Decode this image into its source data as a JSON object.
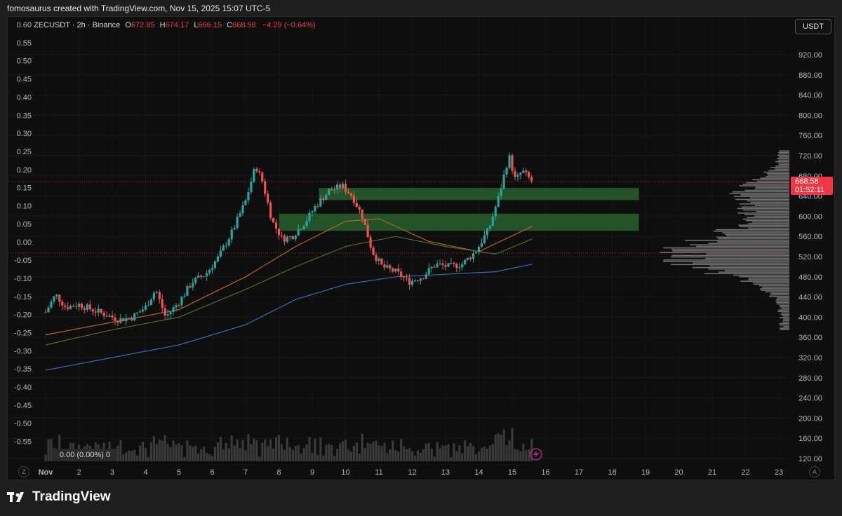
{
  "header": {
    "attribution": "fomosaurus created with TradingView.com, Nov 15, 2025 15:07 UTC-5"
  },
  "legend": {
    "symbol": "ZECUSDT · 2h · Binance",
    "open_label": "O",
    "open": "672.85",
    "high_label": "H",
    "high": "674.17",
    "low_label": "L",
    "low": "666.15",
    "close_label": "C",
    "close": "668.58",
    "change": "−4.29 (−0.64%)"
  },
  "currency_button": "USDT",
  "price_tag": {
    "price": "668.58",
    "countdown": "01:52:11"
  },
  "volume_box": "0.00 (0.00%) 0",
  "axis_buttons": {
    "left": "Z",
    "right": "A"
  },
  "footer": {
    "brand": "TradingView"
  },
  "colors": {
    "up": "#26a69a",
    "down": "#ef5350",
    "zone": "#2e6b33",
    "ma_orange": "#b5651d",
    "ma_green": "#556b2f",
    "ma_blue": "#3d6bb3"
  },
  "chart_data": {
    "type": "candlestick",
    "symbol": "ZECUSDT",
    "interval": "2h",
    "exchange": "Binance",
    "x_tick_labels": [
      "Nov",
      "2",
      "3",
      "4",
      "5",
      "6",
      "7",
      "8",
      "9",
      "10",
      "11",
      "12",
      "13",
      "14",
      "15",
      "16",
      "17",
      "18",
      "19",
      "20",
      "21",
      "22",
      "23"
    ],
    "right_axis_labels": [
      "920.00",
      "880.00",
      "840.00",
      "800.00",
      "760.00",
      "720.00",
      "680.00",
      "640.00",
      "600.00",
      "560.00",
      "520.00",
      "480.00",
      "440.00",
      "400.00",
      "360.00",
      "320.00",
      "280.00",
      "240.00",
      "200.00",
      "160.00",
      "120.00"
    ],
    "left_axis_labels": [
      "0.60",
      "0.55",
      "0.50",
      "0.45",
      "0.40",
      "0.35",
      "0.30",
      "0.25",
      "0.20",
      "0.15",
      "0.10",
      "0.05",
      "0.00",
      "-0.05",
      "-0.10",
      "-0.15",
      "-0.20",
      "-0.25",
      "-0.30",
      "-0.35",
      "-0.40",
      "-0.45",
      "-0.50",
      "-0.55"
    ],
    "right_axis_range": [
      120,
      920
    ],
    "last_price": 668.58,
    "horizontal_lines": [
      668.58,
      527
    ],
    "zones": [
      {
        "day_from": 9.2,
        "day_to": 18.8,
        "price_low": 632,
        "price_high": 656
      },
      {
        "day_from": 8.0,
        "day_to": 18.8,
        "price_low": 571,
        "price_high": 605
      }
    ],
    "price_path": [
      {
        "day": 1.0,
        "price": 410
      },
      {
        "day": 1.3,
        "price": 445
      },
      {
        "day": 1.6,
        "price": 420
      },
      {
        "day": 2.0,
        "price": 425
      },
      {
        "day": 2.4,
        "price": 415
      },
      {
        "day": 2.8,
        "price": 405
      },
      {
        "day": 3.2,
        "price": 395
      },
      {
        "day": 3.6,
        "price": 400
      },
      {
        "day": 4.0,
        "price": 420
      },
      {
        "day": 4.3,
        "price": 455
      },
      {
        "day": 4.6,
        "price": 400
      },
      {
        "day": 5.0,
        "price": 430
      },
      {
        "day": 5.4,
        "price": 470
      },
      {
        "day": 5.8,
        "price": 485
      },
      {
        "day": 6.2,
        "price": 520
      },
      {
        "day": 6.6,
        "price": 570
      },
      {
        "day": 7.0,
        "price": 630
      },
      {
        "day": 7.3,
        "price": 700
      },
      {
        "day": 7.5,
        "price": 670
      },
      {
        "day": 7.8,
        "price": 590
      },
      {
        "day": 8.1,
        "price": 555
      },
      {
        "day": 8.4,
        "price": 560
      },
      {
        "day": 8.8,
        "price": 590
      },
      {
        "day": 9.1,
        "price": 620
      },
      {
        "day": 9.5,
        "price": 650
      },
      {
        "day": 9.9,
        "price": 660
      },
      {
        "day": 10.2,
        "price": 640
      },
      {
        "day": 10.5,
        "price": 600
      },
      {
        "day": 10.8,
        "price": 530
      },
      {
        "day": 11.1,
        "price": 500
      },
      {
        "day": 11.5,
        "price": 490
      },
      {
        "day": 11.9,
        "price": 470
      },
      {
        "day": 12.3,
        "price": 480
      },
      {
        "day": 12.7,
        "price": 505
      },
      {
        "day": 13.1,
        "price": 500
      },
      {
        "day": 13.5,
        "price": 505
      },
      {
        "day": 13.9,
        "price": 530
      },
      {
        "day": 14.3,
        "price": 575
      },
      {
        "day": 14.6,
        "price": 640
      },
      {
        "day": 14.9,
        "price": 720
      },
      {
        "day": 15.1,
        "price": 670
      },
      {
        "day": 15.3,
        "price": 690
      },
      {
        "day": 15.6,
        "price": 668.58
      }
    ],
    "moving_averages": [
      {
        "color": "orange",
        "points": [
          [
            1.0,
            365
          ],
          [
            3,
            390
          ],
          [
            5,
            415
          ],
          [
            7,
            480
          ],
          [
            8.5,
            540
          ],
          [
            10,
            590
          ],
          [
            11,
            595
          ],
          [
            12.5,
            550
          ],
          [
            14,
            530
          ],
          [
            15.6,
            580
          ]
        ]
      },
      {
        "color": "green",
        "points": [
          [
            1.0,
            345
          ],
          [
            3,
            375
          ],
          [
            5,
            400
          ],
          [
            7,
            455
          ],
          [
            8.5,
            500
          ],
          [
            10,
            540
          ],
          [
            11.5,
            560
          ],
          [
            13,
            540
          ],
          [
            14.5,
            525
          ],
          [
            15.6,
            555
          ]
        ]
      },
      {
        "color": "blue",
        "points": [
          [
            1.0,
            295
          ],
          [
            3,
            320
          ],
          [
            5,
            345
          ],
          [
            7,
            385
          ],
          [
            8.5,
            435
          ],
          [
            10,
            465
          ],
          [
            11.5,
            480
          ],
          [
            13,
            485
          ],
          [
            14.5,
            490
          ],
          [
            15.6,
            505
          ]
        ]
      }
    ]
  }
}
